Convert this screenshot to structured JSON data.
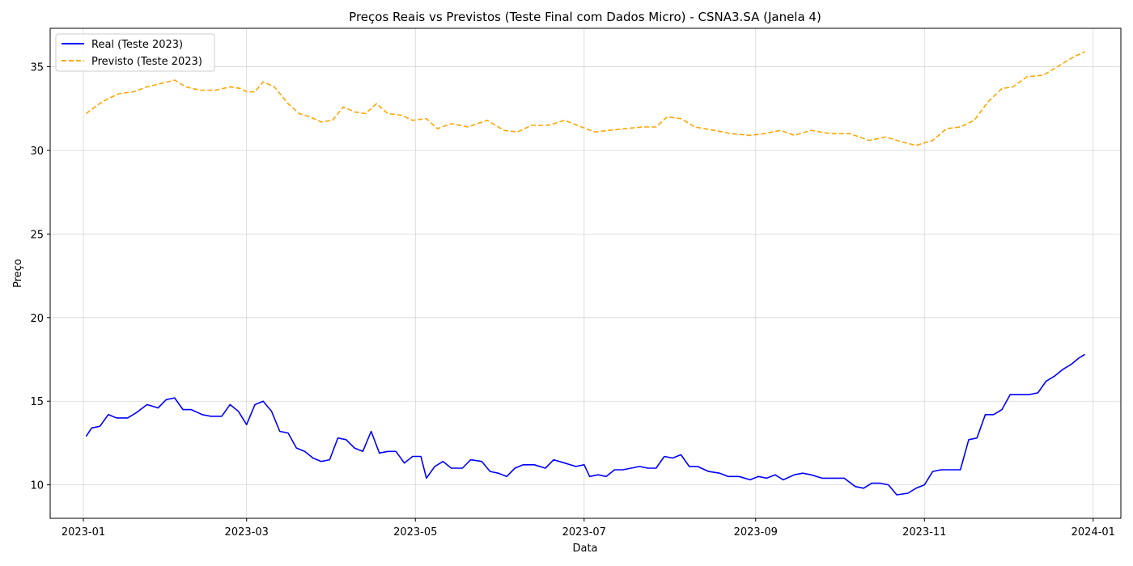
{
  "chart_data": {
    "type": "line",
    "title": "Preços Reais vs Previstos (Teste Final com Dados Micro) - CSNA3.SA (Janela 4)",
    "xlabel": "Data",
    "ylabel": "Preço",
    "xlim": [
      "2022-12-20",
      "2024-01-11"
    ],
    "ylim": [
      8.0,
      37.3
    ],
    "x_ticks": [
      "2023-01-01",
      "2023-03-01",
      "2023-05-01",
      "2023-07-01",
      "2023-09-01",
      "2023-11-01",
      "2024-01-01"
    ],
    "x_tick_labels": [
      "2023-01",
      "2023-03",
      "2023-05",
      "2023-07",
      "2023-09",
      "2023-11",
      "2024-01"
    ],
    "y_ticks": [
      10,
      15,
      20,
      25,
      30,
      35
    ],
    "grid": true,
    "legend_position": "top-left",
    "series": [
      {
        "name": "Real (Teste 2023)",
        "color": "#0000ff",
        "style": "solid",
        "points": [
          [
            "2023-01-02",
            12.9
          ],
          [
            "2023-01-04",
            13.4
          ],
          [
            "2023-01-07",
            13.5
          ],
          [
            "2023-01-10",
            14.2
          ],
          [
            "2023-01-13",
            14.0
          ],
          [
            "2023-01-17",
            14.0
          ],
          [
            "2023-01-20",
            14.3
          ],
          [
            "2023-01-24",
            14.8
          ],
          [
            "2023-01-28",
            14.6
          ],
          [
            "2023-01-31",
            15.1
          ],
          [
            "2023-02-03",
            15.2
          ],
          [
            "2023-02-06",
            14.5
          ],
          [
            "2023-02-09",
            14.5
          ],
          [
            "2023-02-13",
            14.2
          ],
          [
            "2023-02-16",
            14.1
          ],
          [
            "2023-02-20",
            14.1
          ],
          [
            "2023-02-23",
            14.8
          ],
          [
            "2023-02-26",
            14.4
          ],
          [
            "2023-03-01",
            13.6
          ],
          [
            "2023-03-04",
            14.8
          ],
          [
            "2023-03-07",
            15.0
          ],
          [
            "2023-03-10",
            14.4
          ],
          [
            "2023-03-13",
            13.2
          ],
          [
            "2023-03-16",
            13.1
          ],
          [
            "2023-03-19",
            12.2
          ],
          [
            "2023-03-22",
            12.0
          ],
          [
            "2023-03-25",
            11.6
          ],
          [
            "2023-03-28",
            11.4
          ],
          [
            "2023-03-31",
            11.5
          ],
          [
            "2023-04-03",
            12.8
          ],
          [
            "2023-04-06",
            12.7
          ],
          [
            "2023-04-09",
            12.2
          ],
          [
            "2023-04-12",
            12.0
          ],
          [
            "2023-04-15",
            13.2
          ],
          [
            "2023-04-18",
            11.9
          ],
          [
            "2023-04-21",
            12.0
          ],
          [
            "2023-04-24",
            12.0
          ],
          [
            "2023-04-27",
            11.3
          ],
          [
            "2023-04-30",
            11.7
          ],
          [
            "2023-05-03",
            11.7
          ],
          [
            "2023-05-05",
            10.4
          ],
          [
            "2023-05-08",
            11.1
          ],
          [
            "2023-05-11",
            11.4
          ],
          [
            "2023-05-14",
            11.0
          ],
          [
            "2023-05-18",
            11.0
          ],
          [
            "2023-05-21",
            11.5
          ],
          [
            "2023-05-25",
            11.4
          ],
          [
            "2023-05-28",
            10.8
          ],
          [
            "2023-05-31",
            10.7
          ],
          [
            "2023-06-03",
            10.5
          ],
          [
            "2023-06-06",
            11.0
          ],
          [
            "2023-06-09",
            11.2
          ],
          [
            "2023-06-13",
            11.2
          ],
          [
            "2023-06-17",
            11.0
          ],
          [
            "2023-06-20",
            11.5
          ],
          [
            "2023-06-24",
            11.3
          ],
          [
            "2023-06-28",
            11.1
          ],
          [
            "2023-07-01",
            11.2
          ],
          [
            "2023-07-03",
            10.5
          ],
          [
            "2023-07-06",
            10.6
          ],
          [
            "2023-07-09",
            10.5
          ],
          [
            "2023-07-12",
            10.9
          ],
          [
            "2023-07-15",
            10.9
          ],
          [
            "2023-07-18",
            11.0
          ],
          [
            "2023-07-21",
            11.1
          ],
          [
            "2023-07-24",
            11.0
          ],
          [
            "2023-07-27",
            11.0
          ],
          [
            "2023-07-30",
            11.7
          ],
          [
            "2023-08-02",
            11.6
          ],
          [
            "2023-08-05",
            11.8
          ],
          [
            "2023-08-08",
            11.1
          ],
          [
            "2023-08-11",
            11.1
          ],
          [
            "2023-08-15",
            10.8
          ],
          [
            "2023-08-19",
            10.7
          ],
          [
            "2023-08-22",
            10.5
          ],
          [
            "2023-08-26",
            10.5
          ],
          [
            "2023-08-30",
            10.3
          ],
          [
            "2023-09-02",
            10.5
          ],
          [
            "2023-09-05",
            10.4
          ],
          [
            "2023-09-08",
            10.6
          ],
          [
            "2023-09-11",
            10.3
          ],
          [
            "2023-09-15",
            10.6
          ],
          [
            "2023-09-18",
            10.7
          ],
          [
            "2023-09-21",
            10.6
          ],
          [
            "2023-09-25",
            10.4
          ],
          [
            "2023-09-29",
            10.4
          ],
          [
            "2023-10-03",
            10.4
          ],
          [
            "2023-10-07",
            9.9
          ],
          [
            "2023-10-10",
            9.8
          ],
          [
            "2023-10-13",
            10.1
          ],
          [
            "2023-10-16",
            10.1
          ],
          [
            "2023-10-19",
            10.0
          ],
          [
            "2023-10-22",
            9.4
          ],
          [
            "2023-10-26",
            9.5
          ],
          [
            "2023-10-29",
            9.8
          ],
          [
            "2023-11-01",
            10.0
          ],
          [
            "2023-11-04",
            10.8
          ],
          [
            "2023-11-07",
            10.9
          ],
          [
            "2023-11-10",
            10.9
          ],
          [
            "2023-11-14",
            10.9
          ],
          [
            "2023-11-17",
            12.7
          ],
          [
            "2023-11-20",
            12.8
          ],
          [
            "2023-11-23",
            14.2
          ],
          [
            "2023-11-26",
            14.2
          ],
          [
            "2023-11-29",
            14.5
          ],
          [
            "2023-12-02",
            15.4
          ],
          [
            "2023-12-05",
            15.4
          ],
          [
            "2023-12-09",
            15.4
          ],
          [
            "2023-12-12",
            15.5
          ],
          [
            "2023-12-15",
            16.2
          ],
          [
            "2023-12-18",
            16.5
          ],
          [
            "2023-12-21",
            16.9
          ],
          [
            "2023-12-24",
            17.2
          ],
          [
            "2023-12-27",
            17.6
          ],
          [
            "2023-12-29",
            17.8
          ]
        ]
      },
      {
        "name": "Previsto (Teste 2023)",
        "color": "#ffa500",
        "style": "dashed",
        "points": [
          [
            "2023-01-02",
            32.2
          ],
          [
            "2023-01-06",
            32.7
          ],
          [
            "2023-01-10",
            33.1
          ],
          [
            "2023-01-14",
            33.4
          ],
          [
            "2023-01-19",
            33.5
          ],
          [
            "2023-01-24",
            33.8
          ],
          [
            "2023-01-29",
            34.0
          ],
          [
            "2023-02-03",
            34.2
          ],
          [
            "2023-02-07",
            33.8
          ],
          [
            "2023-02-12",
            33.6
          ],
          [
            "2023-02-18",
            33.6
          ],
          [
            "2023-02-23",
            33.8
          ],
          [
            "2023-02-27",
            33.7
          ],
          [
            "2023-03-01",
            33.5
          ],
          [
            "2023-03-04",
            33.5
          ],
          [
            "2023-03-07",
            34.1
          ],
          [
            "2023-03-11",
            33.8
          ],
          [
            "2023-03-16",
            32.8
          ],
          [
            "2023-03-20",
            32.2
          ],
          [
            "2023-03-24",
            32.0
          ],
          [
            "2023-03-28",
            31.7
          ],
          [
            "2023-04-01",
            31.8
          ],
          [
            "2023-04-05",
            32.6
          ],
          [
            "2023-04-09",
            32.3
          ],
          [
            "2023-04-13",
            32.2
          ],
          [
            "2023-04-17",
            32.8
          ],
          [
            "2023-04-21",
            32.2
          ],
          [
            "2023-04-26",
            32.1
          ],
          [
            "2023-04-30",
            31.8
          ],
          [
            "2023-05-05",
            31.9
          ],
          [
            "2023-05-09",
            31.3
          ],
          [
            "2023-05-14",
            31.6
          ],
          [
            "2023-05-20",
            31.4
          ],
          [
            "2023-05-27",
            31.8
          ],
          [
            "2023-06-02",
            31.2
          ],
          [
            "2023-06-07",
            31.1
          ],
          [
            "2023-06-12",
            31.5
          ],
          [
            "2023-06-18",
            31.5
          ],
          [
            "2023-06-24",
            31.8
          ],
          [
            "2023-06-30",
            31.4
          ],
          [
            "2023-07-05",
            31.1
          ],
          [
            "2023-07-10",
            31.2
          ],
          [
            "2023-07-16",
            31.3
          ],
          [
            "2023-07-22",
            31.4
          ],
          [
            "2023-07-27",
            31.4
          ],
          [
            "2023-07-31",
            32.0
          ],
          [
            "2023-08-05",
            31.9
          ],
          [
            "2023-08-10",
            31.4
          ],
          [
            "2023-08-17",
            31.2
          ],
          [
            "2023-08-23",
            31.0
          ],
          [
            "2023-08-30",
            30.9
          ],
          [
            "2023-09-04",
            31.0
          ],
          [
            "2023-09-10",
            31.2
          ],
          [
            "2023-09-15",
            30.9
          ],
          [
            "2023-09-21",
            31.2
          ],
          [
            "2023-09-28",
            31.0
          ],
          [
            "2023-10-05",
            31.0
          ],
          [
            "2023-10-12",
            30.6
          ],
          [
            "2023-10-18",
            30.8
          ],
          [
            "2023-10-24",
            30.5
          ],
          [
            "2023-10-29",
            30.3
          ],
          [
            "2023-11-04",
            30.6
          ],
          [
            "2023-11-09",
            31.3
          ],
          [
            "2023-11-14",
            31.4
          ],
          [
            "2023-11-19",
            31.8
          ],
          [
            "2023-11-24",
            32.9
          ],
          [
            "2023-11-29",
            33.7
          ],
          [
            "2023-12-03",
            33.8
          ],
          [
            "2023-12-08",
            34.4
          ],
          [
            "2023-12-14",
            34.5
          ],
          [
            "2023-12-20",
            35.1
          ],
          [
            "2023-12-25",
            35.6
          ],
          [
            "2023-12-29",
            35.9
          ]
        ]
      }
    ]
  }
}
